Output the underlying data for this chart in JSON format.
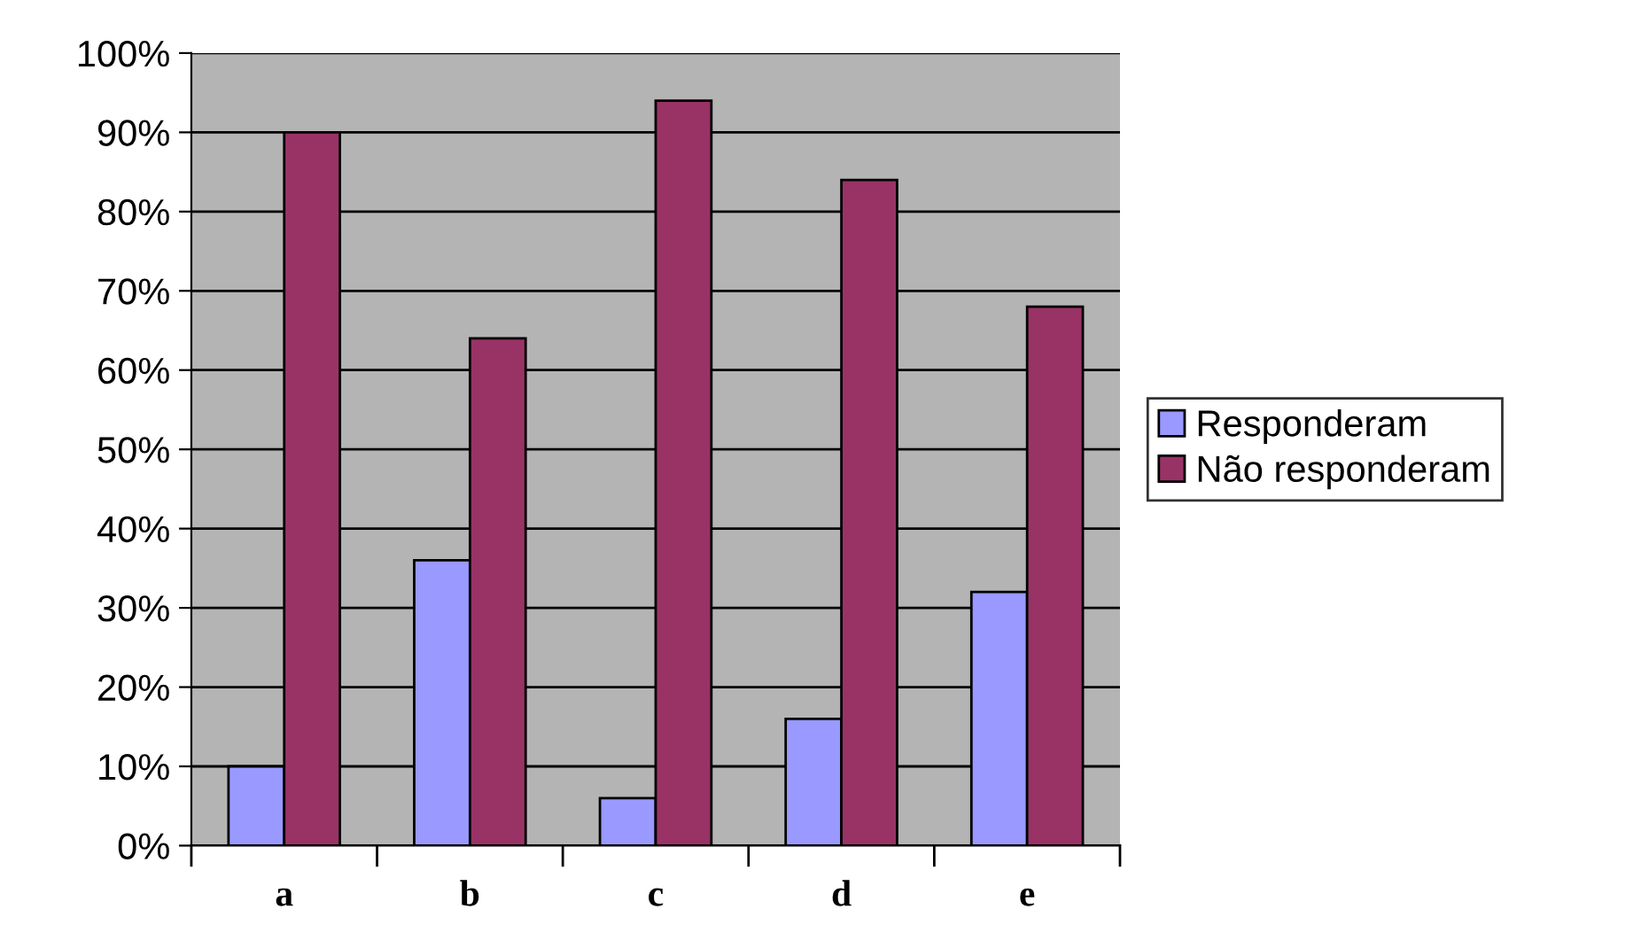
{
  "chart_data": {
    "type": "bar",
    "categories": [
      "a",
      "b",
      "c",
      "d",
      "e"
    ],
    "series": [
      {
        "name": "Responderam",
        "color": "#9999ff",
        "values": [
          10,
          36,
          6,
          16,
          32
        ]
      },
      {
        "name": "Não responderam",
        "color": "#993366",
        "values": [
          90,
          64,
          94,
          84,
          68
        ]
      }
    ],
    "ylim": [
      0,
      100
    ],
    "yticks": [
      {
        "value": 0,
        "label": "0%"
      },
      {
        "value": 10,
        "label": "10%"
      },
      {
        "value": 20,
        "label": "20%"
      },
      {
        "value": 30,
        "label": "30%"
      },
      {
        "value": 40,
        "label": "40%"
      },
      {
        "value": 50,
        "label": "50%"
      },
      {
        "value": 60,
        "label": "60%"
      },
      {
        "value": 70,
        "label": "70%"
      },
      {
        "value": 80,
        "label": "80%"
      },
      {
        "value": 90,
        "label": "90%"
      },
      {
        "value": 100,
        "label": "100%"
      }
    ],
    "grid": "y",
    "legend": "right"
  }
}
